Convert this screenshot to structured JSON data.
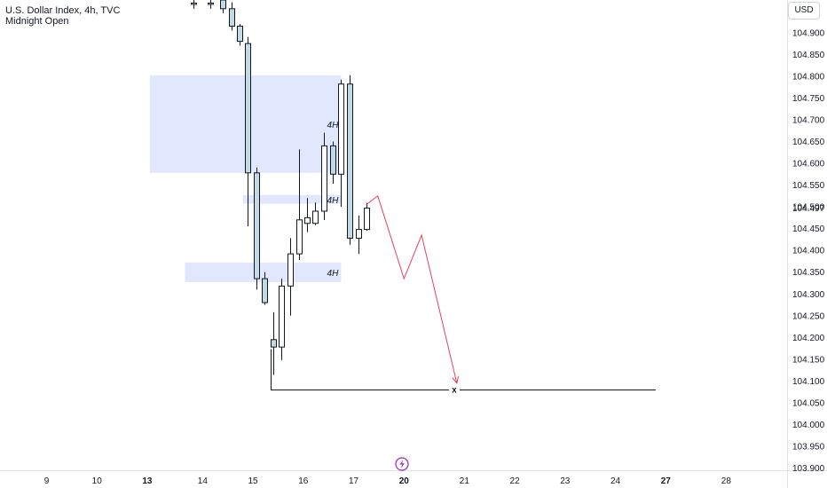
{
  "legend": {
    "symbol_line": "U.S. Dollar Index, 4h, TVC",
    "indicator": "Midnight Open"
  },
  "currency_button": "USD",
  "colors": {
    "bull_candle": "#ffffff",
    "bear_candle": "#c3d9e3",
    "candle_outline": "#131722",
    "zone_fill": "#c9d4fb",
    "path_color": "#e8405b",
    "level_line": "#131722"
  },
  "price_badge": "104.497",
  "level_marker": "x",
  "replay_icon": "lightning-bolt-icon",
  "zones": [
    {
      "label": "4H",
      "top": 104.802,
      "bottom": 104.578,
      "x_start": 15.15,
      "x_end": 18.95
    },
    {
      "label": "4H",
      "top": 104.527,
      "bottom": 104.507,
      "x_start": 17.0,
      "x_end": 18.95
    },
    {
      "label": "4H",
      "top": 104.372,
      "bottom": 104.327,
      "x_start": 15.85,
      "x_end": 18.95
    }
  ],
  "chart_data": {
    "type": "candlestick",
    "title": "U.S. Dollar Index, 4h, TVC",
    "y_ticks": [
      "104.900",
      "104.850",
      "104.800",
      "104.750",
      "104.700",
      "104.650",
      "104.600",
      "104.550",
      "104.500",
      "104.450",
      "104.400",
      "104.350",
      "104.300",
      "104.250",
      "104.200",
      "104.150",
      "104.100",
      "104.050",
      "104.000",
      "103.950",
      "103.900"
    ],
    "y_range": [
      103.895,
      104.975
    ],
    "x_ticks": [
      {
        "label": "9",
        "bold": false,
        "pos": 13.1
      },
      {
        "label": "10",
        "bold": false,
        "pos": 14.1
      },
      {
        "label": "13",
        "bold": true,
        "pos": 15.1
      },
      {
        "label": "14",
        "bold": false,
        "pos": 16.2
      },
      {
        "label": "15",
        "bold": false,
        "pos": 17.2
      },
      {
        "label": "16",
        "bold": false,
        "pos": 18.2
      },
      {
        "label": "17",
        "bold": false,
        "pos": 19.2
      },
      {
        "label": "20",
        "bold": true,
        "pos": 20.2
      },
      {
        "label": "21",
        "bold": false,
        "pos": 21.4
      },
      {
        "label": "22",
        "bold": false,
        "pos": 22.4
      },
      {
        "label": "23",
        "bold": false,
        "pos": 23.4
      },
      {
        "label": "24",
        "bold": false,
        "pos": 24.4
      },
      {
        "label": "27",
        "bold": true,
        "pos": 25.4
      },
      {
        "label": "28",
        "bold": false,
        "pos": 26.6
      }
    ],
    "x_range": [
      12.175,
      27.81
    ],
    "candles": [
      {
        "x": 16.02,
        "o": 104.965,
        "h": 104.985,
        "l": 104.955,
        "c": 104.968
      },
      {
        "x": 16.35,
        "o": 104.965,
        "h": 104.985,
        "l": 104.955,
        "c": 104.968
      },
      {
        "x": 16.6,
        "o": 104.975,
        "h": 104.985,
        "l": 104.945,
        "c": 104.955
      },
      {
        "x": 16.77,
        "o": 104.955,
        "h": 104.97,
        "l": 104.905,
        "c": 104.915
      },
      {
        "x": 16.93,
        "o": 104.915,
        "h": 104.92,
        "l": 104.87,
        "c": 104.88
      },
      {
        "x": 17.1,
        "o": 104.875,
        "h": 104.89,
        "l": 104.455,
        "c": 104.578
      },
      {
        "x": 17.27,
        "o": 104.578,
        "h": 104.59,
        "l": 104.31,
        "c": 104.335
      },
      {
        "x": 17.43,
        "o": 104.335,
        "h": 104.35,
        "l": 104.275,
        "c": 104.28
      },
      {
        "x": 17.6,
        "o": 104.195,
        "h": 104.258,
        "l": 104.114,
        "c": 104.178
      },
      {
        "x": 17.77,
        "o": 104.178,
        "h": 104.335,
        "l": 104.148,
        "c": 104.318
      },
      {
        "x": 17.94,
        "o": 104.318,
        "h": 104.428,
        "l": 104.25,
        "c": 104.392
      },
      {
        "x": 18.11,
        "o": 104.392,
        "h": 104.632,
        "l": 104.378,
        "c": 104.47
      },
      {
        "x": 18.28,
        "o": 104.462,
        "h": 104.52,
        "l": 104.442,
        "c": 104.475
      },
      {
        "x": 18.44,
        "o": 104.462,
        "h": 104.51,
        "l": 104.458,
        "c": 104.49
      },
      {
        "x": 18.61,
        "o": 104.49,
        "h": 104.67,
        "l": 104.47,
        "c": 104.64
      },
      {
        "x": 18.78,
        "o": 104.64,
        "h": 104.65,
        "l": 104.553,
        "c": 104.575
      },
      {
        "x": 18.95,
        "o": 104.575,
        "h": 104.792,
        "l": 104.5,
        "c": 104.782
      },
      {
        "x": 19.12,
        "o": 104.782,
        "h": 104.802,
        "l": 104.413,
        "c": 104.428
      },
      {
        "x": 19.29,
        "o": 104.428,
        "h": 104.48,
        "l": 104.392,
        "c": 104.448
      },
      {
        "x": 19.46,
        "o": 104.448,
        "h": 104.509,
        "l": 104.445,
        "c": 104.497
      }
    ],
    "level": {
      "price": 104.08,
      "x_start": 17.55,
      "x_end": 25.2
    },
    "projection_path": [
      {
        "x": 19.45,
        "y": 104.505
      },
      {
        "x": 19.68,
        "y": 104.525
      },
      {
        "x": 20.2,
        "y": 104.335
      },
      {
        "x": 20.55,
        "y": 104.435
      },
      {
        "x": 21.25,
        "y": 104.095
      }
    ]
  }
}
